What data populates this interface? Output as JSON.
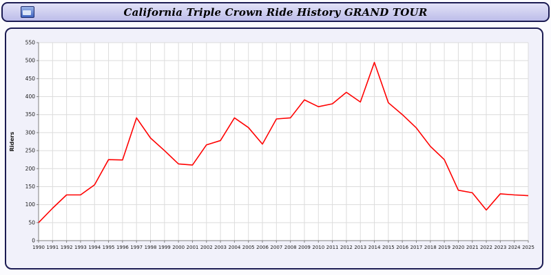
{
  "header": {
    "title": "California Triple Crown Ride History GRAND TOUR",
    "icon": "chart-window-icon"
  },
  "chart_data": {
    "type": "line",
    "title": "California Triple Crown Ride History GRAND TOUR",
    "xlabel": "",
    "ylabel": "Riders",
    "ylim": [
      0,
      550
    ],
    "ytick_step": 50,
    "grid": true,
    "legend": "none",
    "line_color": "#ff0000",
    "x": [
      1990,
      1991,
      1992,
      1993,
      1994,
      1995,
      1996,
      1997,
      1998,
      1999,
      2000,
      2001,
      2002,
      2003,
      2004,
      2005,
      2006,
      2007,
      2008,
      2009,
      2010,
      2011,
      2012,
      2013,
      2014,
      2015,
      2016,
      2017,
      2018,
      2019,
      2020,
      2021,
      2022,
      2023,
      2024,
      2025
    ],
    "series": [
      {
        "name": "Riders",
        "values": [
          50,
          90,
          127,
          127,
          155,
          225,
          224,
          341,
          285,
          250,
          213,
          210,
          266,
          278,
          341,
          314,
          268,
          338,
          341,
          391,
          372,
          380,
          412,
          385,
          495,
          383,
          350,
          313,
          262,
          225,
          140,
          133,
          85,
          130,
          127,
          125
        ]
      }
    ]
  },
  "colors": {
    "titlebar_bg": "#c9c9ef",
    "panel_bg": "#f1f1fa",
    "border": "#1b1b52",
    "plot_bg": "#ffffff",
    "grid": "#dcdcdc",
    "axis": "#808080",
    "tick_text": "#1a1a1a",
    "line": "#ff0000"
  }
}
